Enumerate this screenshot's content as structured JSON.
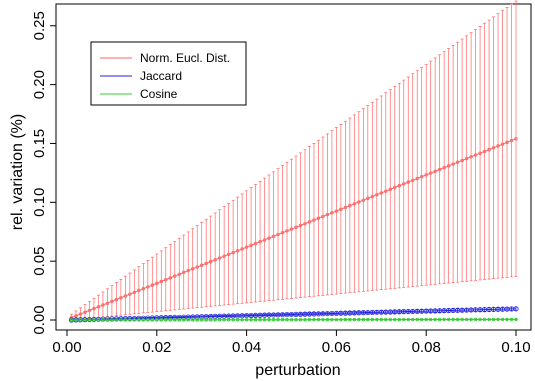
{
  "chart_data": {
    "type": "line",
    "title": "",
    "xlabel": "perturbation",
    "ylabel": "rel. variation (%)",
    "xlim": [
      0.0,
      0.1
    ],
    "ylim": [
      0.0,
      0.26
    ],
    "x_ticks": [
      "0.00",
      "0.02",
      "0.04",
      "0.06",
      "0.08",
      "0.10"
    ],
    "y_ticks": [
      "0.00",
      "0.05",
      "0.10",
      "0.15",
      "0.20",
      "0.25"
    ],
    "grid": false,
    "legend_position": "top-left",
    "x_range": {
      "start": 0.001,
      "end": 0.1,
      "step": 0.001
    },
    "series": [
      {
        "name": "Norm. Eucl. Dist.",
        "color": "#ff6666",
        "marker": "circle-small",
        "error_bars": true,
        "mean_start": 0.002,
        "mean_end": 0.154,
        "upper_start": 0.005,
        "upper_end": 0.271,
        "lower_start": 0.0,
        "lower_end": 0.037
      },
      {
        "name": "Jaccard",
        "color": "#2222dd",
        "marker": "circle",
        "error_bars": true,
        "mean_start": 0.0,
        "mean_end": 0.0095,
        "upper_start": 0.0005,
        "upper_end": 0.011,
        "lower_start": 0.0,
        "lower_end": 0.008
      },
      {
        "name": "Cosine",
        "color": "#33cc33",
        "marker": "circle-small",
        "error_bars": true,
        "mean_start": 0.0,
        "mean_end": 0.0005,
        "upper_start": 0.0,
        "upper_end": 0.0008,
        "lower_start": 0.0,
        "lower_end": 0.0002
      }
    ]
  }
}
